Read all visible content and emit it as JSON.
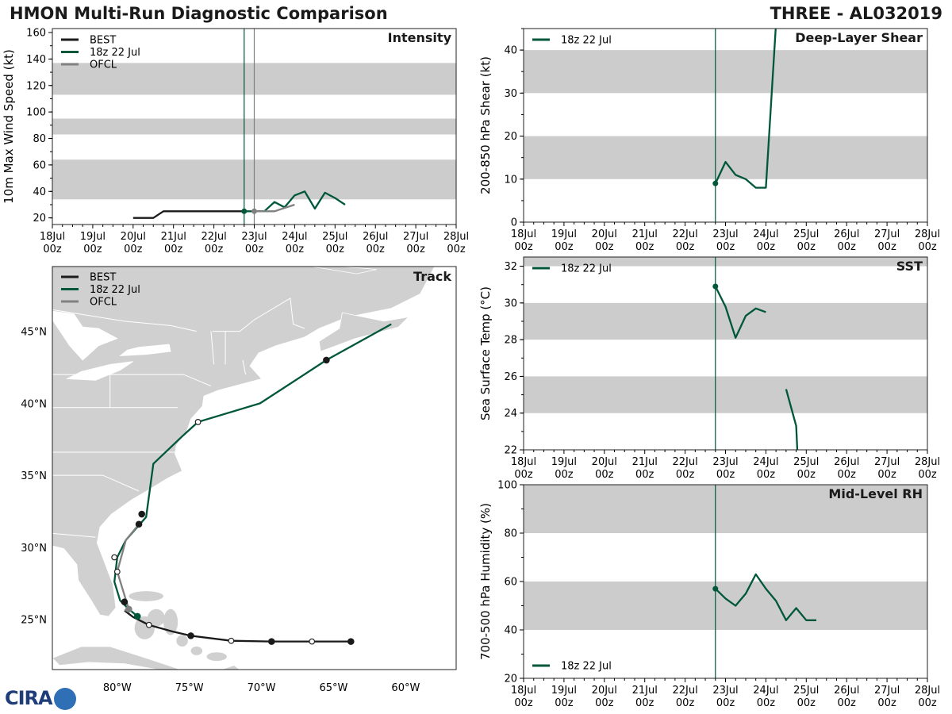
{
  "header": {
    "left": "HMON Multi-Run Diagnostic Comparison",
    "right": "THREE - AL032019"
  },
  "logo_text": "CIRA",
  "colors": {
    "best": "#1a1a1a",
    "run": "#00573a",
    "ofcl": "#808080",
    "band": "#cccccc",
    "land": "#d0d0d0"
  },
  "time_ticks": [
    "18Jul\n00z",
    "19Jul\n00z",
    "20Jul\n00z",
    "21Jul\n00z",
    "22Jul\n00z",
    "23Jul\n00z",
    "24Jul\n00z",
    "25Jul\n00z",
    "26Jul\n00z",
    "27Jul\n00z",
    "28Jul\n00z"
  ],
  "chart_data": [
    {
      "id": "intensity",
      "type": "line",
      "title": "Intensity",
      "ylabel": "10m Max Wind Speed (kt)",
      "xlim": [
        0,
        10
      ],
      "ylim": [
        15,
        163
      ],
      "yticks": [
        20,
        40,
        60,
        80,
        100,
        120,
        140,
        160
      ],
      "bands": [
        [
          34,
          64
        ],
        [
          83,
          95
        ],
        [
          113,
          137
        ]
      ],
      "vlines": [
        {
          "x": 4.75,
          "color": "run"
        },
        {
          "x": 5.0,
          "color": "ofcl"
        }
      ],
      "legend": [
        "BEST",
        "18z 22 Jul",
        "OFCL"
      ],
      "series": [
        {
          "name": "BEST",
          "color": "best",
          "x": [
            2.0,
            2.5,
            2.75,
            3.0,
            3.5,
            4.0,
            4.5,
            4.75
          ],
          "y": [
            20,
            20,
            25,
            25,
            25,
            25,
            25,
            25
          ]
        },
        {
          "name": "18z 22 Jul",
          "color": "run",
          "x": [
            4.75,
            5.0,
            5.25,
            5.5,
            5.75,
            6.0,
            6.25,
            6.5,
            6.75,
            7.0,
            7.25
          ],
          "y": [
            25,
            25,
            25,
            32,
            28,
            37,
            40,
            27,
            39,
            35,
            30
          ]
        },
        {
          "name": "OFCL",
          "color": "ofcl",
          "x": [
            5.0,
            5.5,
            6.0
          ],
          "y": [
            25,
            25,
            30
          ]
        }
      ],
      "markers": [
        {
          "x": 4.75,
          "y": 25,
          "color": "run"
        },
        {
          "x": 5.0,
          "y": 25,
          "color": "ofcl"
        }
      ]
    },
    {
      "id": "shear",
      "type": "line",
      "title": "Deep-Layer Shear",
      "ylabel": "200-850 hPa Shear (kt)",
      "xlim": [
        0,
        10
      ],
      "ylim": [
        0,
        45
      ],
      "yticks": [
        0,
        10,
        20,
        30,
        40
      ],
      "bands": [
        [
          10,
          20
        ],
        [
          30,
          40
        ]
      ],
      "vlines": [
        {
          "x": 4.75,
          "color": "run"
        }
      ],
      "legend": [
        "18z 22 Jul"
      ],
      "series": [
        {
          "name": "18z 22 Jul",
          "color": "run",
          "x": [
            4.75,
            5.0,
            5.25,
            5.5,
            5.75,
            6.0,
            6.25
          ],
          "y": [
            9,
            14,
            11,
            10,
            8,
            8,
            46
          ]
        }
      ],
      "markers": [
        {
          "x": 4.75,
          "y": 9,
          "color": "run"
        }
      ]
    },
    {
      "id": "sst",
      "type": "line",
      "title": "SST",
      "ylabel": "Sea Surface Temp (°C)",
      "xlim": [
        0,
        10
      ],
      "ylim": [
        22,
        32.5
      ],
      "yticks": [
        22,
        24,
        26,
        28,
        30,
        32
      ],
      "bands": [
        [
          24,
          26
        ],
        [
          28,
          30
        ],
        [
          32,
          33
        ]
      ],
      "vlines": [
        {
          "x": 4.75,
          "color": "run"
        }
      ],
      "legend": [
        "18z 22 Jul"
      ],
      "series": [
        {
          "name": "18z 22 Jul",
          "color": "run",
          "x": [
            4.75,
            5.0,
            5.25,
            5.5,
            5.75,
            6.0
          ],
          "y": [
            30.9,
            29.8,
            28.1,
            29.3,
            29.7,
            29.5
          ]
        },
        {
          "name": "18z 22 Jul (cont.)",
          "color": "run",
          "x": [
            6.5,
            6.75,
            6.78
          ],
          "y": [
            25.3,
            23.3,
            21.9
          ]
        }
      ],
      "markers": [
        {
          "x": 4.75,
          "y": 30.9,
          "color": "run"
        }
      ]
    },
    {
      "id": "rh",
      "type": "line",
      "title": "Mid-Level RH",
      "ylabel": "700-500 hPa Humidity (%)",
      "xlim": [
        0,
        10
      ],
      "ylim": [
        20,
        100
      ],
      "yticks": [
        20,
        40,
        60,
        80,
        100
      ],
      "bands": [
        [
          40,
          60
        ],
        [
          80,
          100
        ]
      ],
      "vlines": [
        {
          "x": 4.75,
          "color": "run"
        }
      ],
      "legend": [
        "18z 22 Jul"
      ],
      "series": [
        {
          "name": "18z 22 Jul",
          "color": "run",
          "x": [
            4.75,
            5.0,
            5.25,
            5.5,
            5.75,
            6.0,
            6.25,
            6.5,
            6.75,
            7.0,
            7.25
          ],
          "y": [
            57,
            53,
            50,
            55,
            63,
            57,
            52,
            44,
            49,
            44,
            44
          ]
        }
      ],
      "markers": [
        {
          "x": 4.75,
          "y": 57,
          "color": "run"
        }
      ]
    },
    {
      "id": "track",
      "type": "line",
      "title": "Track",
      "lon_range": [
        -84.5,
        -56.5
      ],
      "lat_range": [
        21.5,
        49.5
      ],
      "xticks": [
        {
          "v": -80,
          "label": "80°W"
        },
        {
          "v": -75,
          "label": "75°W"
        },
        {
          "v": -70,
          "label": "70°W"
        },
        {
          "v": -65,
          "label": "65°W"
        },
        {
          "v": -60,
          "label": "60°W"
        }
      ],
      "yticks": [
        {
          "v": 25,
          "label": "25°N"
        },
        {
          "v": 30,
          "label": "30°N"
        },
        {
          "v": 35,
          "label": "35°N"
        },
        {
          "v": 40,
          "label": "40°N"
        },
        {
          "v": 45,
          "label": "45°N"
        }
      ],
      "legend": [
        "BEST",
        "18z 22 Jul",
        "OFCL"
      ],
      "series": [
        {
          "name": "BEST",
          "color": "best",
          "lon": [
            -63.8,
            -66.5,
            -69.3,
            -72.1,
            -74.9,
            -76.2,
            -77.8,
            -78.9,
            -79.5
          ],
          "lat": [
            23.45,
            23.45,
            23.45,
            23.5,
            23.85,
            24.15,
            24.6,
            25.15,
            25.6
          ]
        },
        {
          "name": "18z 22 Jul",
          "color": "run",
          "lon": [
            -78.6,
            -79.2,
            -79.8,
            -80.2,
            -80.0,
            -79.4,
            -78.0,
            -77.5,
            -75.5,
            -74.4,
            -70.1,
            -65.5,
            -61.0
          ],
          "lat": [
            25.2,
            25.7,
            26.3,
            27.6,
            29.3,
            30.5,
            32.1,
            35.8,
            37.7,
            38.7,
            40.0,
            43.0,
            45.5
          ]
        },
        {
          "name": "OFCL",
          "color": "ofcl",
          "lon": [
            -79.5,
            -79.2,
            -80.0,
            -79.4,
            -78.5
          ],
          "lat": [
            25.6,
            25.7,
            28.3,
            30.5,
            31.6
          ]
        }
      ],
      "points": [
        {
          "lon": -63.8,
          "lat": 23.45,
          "fill": "best"
        },
        {
          "lon": -66.5,
          "lat": 23.45,
          "fill": "open"
        },
        {
          "lon": -69.3,
          "lat": 23.45,
          "fill": "best"
        },
        {
          "lon": -72.1,
          "lat": 23.5,
          "fill": "open"
        },
        {
          "lon": -74.9,
          "lat": 23.85,
          "fill": "best"
        },
        {
          "lon": -77.8,
          "lat": 24.6,
          "fill": "open"
        },
        {
          "lon": -78.6,
          "lat": 25.2,
          "fill": "run"
        },
        {
          "lon": -79.2,
          "lat": 25.7,
          "fill": "ofcl"
        },
        {
          "lon": -79.5,
          "lat": 26.2,
          "fill": "best"
        },
        {
          "lon": -80.0,
          "lat": 28.3,
          "fill": "open"
        },
        {
          "lon": -80.2,
          "lat": 29.3,
          "fill": "open"
        },
        {
          "lon": -78.5,
          "lat": 31.6,
          "fill": "best"
        },
        {
          "lon": -78.3,
          "lat": 32.3,
          "fill": "best"
        },
        {
          "lon": -74.4,
          "lat": 38.7,
          "fill": "open"
        },
        {
          "lon": -65.5,
          "lat": 43.0,
          "fill": "best"
        }
      ]
    }
  ]
}
